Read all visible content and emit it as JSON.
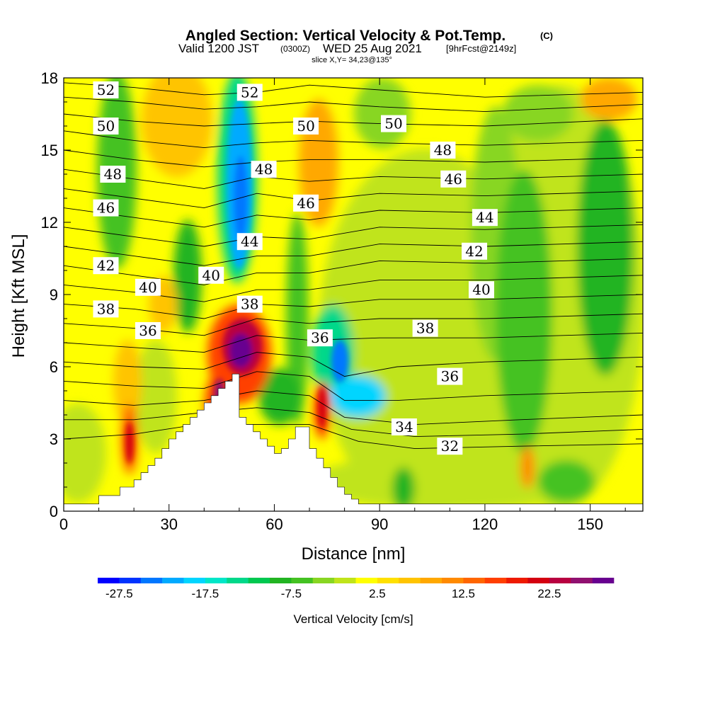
{
  "chart_data": {
    "type": "heatmap",
    "title": "Angled Section: Vertical Velocity & Pot.Temp.",
    "title_unit": "(C)",
    "subtitle_valid": "Valid 1200 JST",
    "subtitle_z": "(0300Z)",
    "subtitle_date": "WED 25 Aug 2021",
    "subtitle_fcst": "[9hrFcst@2149z]",
    "subtitle_slice": "slice X,Y= 34,23@135°",
    "xlabel": "Distance [nm]",
    "ylabel": "Height [Kft MSL]",
    "xlim": [
      0,
      165
    ],
    "ylim": [
      0,
      18
    ],
    "x_ticks": [
      "0",
      "30",
      "60",
      "90",
      "120",
      "150"
    ],
    "y_ticks": [
      "0",
      "3",
      "6",
      "9",
      "12",
      "15",
      "18"
    ],
    "colorbar": {
      "label": "Vertical Velocity [cm/s]",
      "tick_labels": [
        "-27.5",
        "-17.5",
        "-7.5",
        "2.5",
        "12.5",
        "22.5"
      ],
      "tick_values": [
        -27.5,
        -17.5,
        -7.5,
        2.5,
        12.5,
        22.5
      ],
      "min": -30,
      "max": 30,
      "step": 2.5,
      "colors": [
        "#0000ff",
        "#0033ff",
        "#0077ff",
        "#00aaff",
        "#00d5ff",
        "#00e6c8",
        "#00d88a",
        "#00c850",
        "#22b422",
        "#44c222",
        "#88d622",
        "#c0e41a",
        "#ffff00",
        "#ffe000",
        "#ffc400",
        "#ffa800",
        "#ff8a00",
        "#ff6600",
        "#ff3f00",
        "#ee1a00",
        "#d40010",
        "#b80040",
        "#901070",
        "#680090"
      ]
    },
    "terrain": [
      [
        0,
        0.3
      ],
      [
        10,
        0.3
      ],
      [
        10,
        0.65
      ],
      [
        16,
        0.65
      ],
      [
        16,
        1.0
      ],
      [
        18,
        1.0
      ],
      [
        18,
        1.0
      ],
      [
        20,
        1.0
      ],
      [
        20,
        1.3
      ],
      [
        22,
        1.3
      ],
      [
        22,
        1.6
      ],
      [
        24,
        1.6
      ],
      [
        24,
        1.9
      ],
      [
        26,
        1.9
      ],
      [
        26,
        2.2
      ],
      [
        28,
        2.2
      ],
      [
        28,
        2.6
      ],
      [
        30,
        2.6
      ],
      [
        30,
        3.0
      ],
      [
        32,
        3.0
      ],
      [
        32,
        3.3
      ],
      [
        34,
        3.3
      ],
      [
        34,
        3.6
      ],
      [
        36,
        3.6
      ],
      [
        36,
        3.9
      ],
      [
        38,
        3.9
      ],
      [
        38,
        4.2
      ],
      [
        40,
        4.2
      ],
      [
        40,
        4.5
      ],
      [
        42,
        4.5
      ],
      [
        42,
        4.8
      ],
      [
        44,
        4.8
      ],
      [
        44,
        5.1
      ],
      [
        46,
        5.1
      ],
      [
        46,
        5.4
      ],
      [
        48,
        5.4
      ],
      [
        48,
        5.7
      ],
      [
        50,
        5.7
      ],
      [
        50,
        3.9
      ],
      [
        52,
        3.9
      ],
      [
        52,
        3.6
      ],
      [
        54,
        3.6
      ],
      [
        54,
        3.3
      ],
      [
        56,
        3.3
      ],
      [
        56,
        3.0
      ],
      [
        58,
        3.0
      ],
      [
        58,
        2.7
      ],
      [
        60,
        2.7
      ],
      [
        60,
        2.4
      ],
      [
        62,
        2.4
      ],
      [
        62,
        2.6
      ],
      [
        64,
        2.6
      ],
      [
        64,
        3.0
      ],
      [
        66,
        3.0
      ],
      [
        66,
        3.5
      ],
      [
        68,
        3.5
      ],
      [
        68,
        3.5
      ],
      [
        70,
        3.5
      ],
      [
        70,
        2.6
      ],
      [
        72,
        2.6
      ],
      [
        72,
        2.2
      ],
      [
        74,
        2.2
      ],
      [
        74,
        1.8
      ],
      [
        76,
        1.8
      ],
      [
        76,
        1.4
      ],
      [
        78,
        1.4
      ],
      [
        78,
        1.0
      ],
      [
        80,
        1.0
      ],
      [
        80,
        0.7
      ],
      [
        82,
        0.7
      ],
      [
        82,
        0.5
      ],
      [
        84,
        0.5
      ],
      [
        84,
        0.3
      ],
      [
        165,
        0.3
      ]
    ],
    "theta_levels": [
      {
        "value": "52",
        "label_x": 12,
        "label_y": 17.5
      },
      {
        "value": "50",
        "label_x": 12,
        "label_y": 16.0
      },
      {
        "value": "48",
        "label_x": 14,
        "label_y": 14.0
      },
      {
        "value": "46",
        "label_x": 12,
        "label_y": 12.6
      },
      {
        "value": "42",
        "label_x": 12,
        "label_y": 10.2
      },
      {
        "value": "40",
        "label_x": 24,
        "label_y": 9.3
      },
      {
        "value": "38",
        "label_x": 12,
        "label_y": 8.4
      },
      {
        "value": "36",
        "label_x": 24,
        "label_y": 7.5
      },
      {
        "value": "52",
        "label_x": 53,
        "label_y": 17.4
      },
      {
        "value": "48",
        "label_x": 57,
        "label_y": 14.2
      },
      {
        "value": "44",
        "label_x": 53,
        "label_y": 11.2
      },
      {
        "value": "40",
        "label_x": 42,
        "label_y": 9.8
      },
      {
        "value": "38",
        "label_x": 53,
        "label_y": 8.6
      },
      {
        "value": "50",
        "label_x": 69,
        "label_y": 16.0
      },
      {
        "value": "46",
        "label_x": 69,
        "label_y": 12.8
      },
      {
        "value": "36",
        "label_x": 73,
        "label_y": 7.2
      },
      {
        "value": "50",
        "label_x": 94,
        "label_y": 16.1
      },
      {
        "value": "48",
        "label_x": 108,
        "label_y": 15.0
      },
      {
        "value": "46",
        "label_x": 111,
        "label_y": 13.8
      },
      {
        "value": "44",
        "label_x": 120,
        "label_y": 12.2
      },
      {
        "value": "42",
        "label_x": 117,
        "label_y": 10.8
      },
      {
        "value": "40",
        "label_x": 119,
        "label_y": 9.2
      },
      {
        "value": "38",
        "label_x": 103,
        "label_y": 7.6
      },
      {
        "value": "36",
        "label_x": 110,
        "label_y": 5.6
      },
      {
        "value": "34",
        "label_x": 97,
        "label_y": 3.5
      },
      {
        "value": "32",
        "label_x": 110,
        "label_y": 2.7
      }
    ],
    "theta_lines": [
      [
        [
          0,
          17.8
        ],
        [
          20,
          17.6
        ],
        [
          40,
          17.3
        ],
        [
          55,
          17.4
        ],
        [
          70,
          17.7
        ],
        [
          90,
          17.5
        ],
        [
          120,
          17.2
        ],
        [
          165,
          17.4
        ]
      ],
      [
        [
          0,
          17.2
        ],
        [
          20,
          17.0
        ],
        [
          40,
          16.7
        ],
        [
          55,
          16.8
        ],
        [
          70,
          17.0
        ],
        [
          90,
          16.8
        ],
        [
          120,
          16.6
        ],
        [
          165,
          16.9
        ]
      ],
      [
        [
          0,
          16.5
        ],
        [
          20,
          16.2
        ],
        [
          40,
          16.0
        ],
        [
          55,
          16.1
        ],
        [
          70,
          16.2
        ],
        [
          90,
          16.1
        ],
        [
          120,
          16.0
        ],
        [
          165,
          16.3
        ]
      ],
      [
        [
          0,
          15.8
        ],
        [
          20,
          15.4
        ],
        [
          40,
          15.1
        ],
        [
          55,
          15.3
        ],
        [
          70,
          15.4
        ],
        [
          90,
          15.3
        ],
        [
          120,
          15.2
        ],
        [
          165,
          15.4
        ]
      ],
      [
        [
          0,
          15.0
        ],
        [
          20,
          14.6
        ],
        [
          40,
          14.3
        ],
        [
          55,
          14.5
        ],
        [
          70,
          14.6
        ],
        [
          90,
          14.6
        ],
        [
          120,
          14.5
        ],
        [
          165,
          14.7
        ]
      ],
      [
        [
          0,
          14.2
        ],
        [
          20,
          13.8
        ],
        [
          40,
          13.4
        ],
        [
          55,
          13.9
        ],
        [
          70,
          13.7
        ],
        [
          90,
          13.9
        ],
        [
          120,
          13.8
        ],
        [
          165,
          14.0
        ]
      ],
      [
        [
          0,
          13.4
        ],
        [
          20,
          13.0
        ],
        [
          40,
          12.6
        ],
        [
          55,
          13.2
        ],
        [
          70,
          12.9
        ],
        [
          90,
          13.2
        ],
        [
          120,
          13.1
        ],
        [
          165,
          13.3
        ]
      ],
      [
        [
          0,
          12.6
        ],
        [
          20,
          12.2
        ],
        [
          40,
          11.8
        ],
        [
          55,
          12.3
        ],
        [
          70,
          12.1
        ],
        [
          90,
          12.5
        ],
        [
          120,
          12.4
        ],
        [
          165,
          12.6
        ]
      ],
      [
        [
          0,
          11.8
        ],
        [
          20,
          11.4
        ],
        [
          40,
          11.0
        ],
        [
          55,
          11.4
        ],
        [
          70,
          11.3
        ],
        [
          90,
          11.8
        ],
        [
          120,
          11.7
        ],
        [
          165,
          11.9
        ]
      ],
      [
        [
          0,
          11.0
        ],
        [
          20,
          10.6
        ],
        [
          40,
          10.2
        ],
        [
          55,
          10.6
        ],
        [
          70,
          10.6
        ],
        [
          90,
          11.1
        ],
        [
          120,
          11.0
        ],
        [
          165,
          11.2
        ]
      ],
      [
        [
          0,
          10.2
        ],
        [
          20,
          9.8
        ],
        [
          40,
          9.4
        ],
        [
          55,
          9.9
        ],
        [
          70,
          9.9
        ],
        [
          90,
          10.4
        ],
        [
          120,
          10.3
        ],
        [
          165,
          10.5
        ]
      ],
      [
        [
          0,
          9.4
        ],
        [
          20,
          9.1
        ],
        [
          40,
          8.7
        ],
        [
          55,
          9.2
        ],
        [
          70,
          9.2
        ],
        [
          90,
          9.6
        ],
        [
          120,
          9.6
        ],
        [
          165,
          9.8
        ]
      ],
      [
        [
          0,
          8.6
        ],
        [
          20,
          8.4
        ],
        [
          40,
          8.0
        ],
        [
          55,
          8.6
        ],
        [
          70,
          8.5
        ],
        [
          90,
          8.8
        ],
        [
          120,
          8.8
        ],
        [
          165,
          9.0
        ]
      ],
      [
        [
          0,
          7.8
        ],
        [
          20,
          7.6
        ],
        [
          40,
          7.3
        ],
        [
          55,
          8.0
        ],
        [
          70,
          7.8
        ],
        [
          90,
          8.0
        ],
        [
          120,
          8.0
        ],
        [
          165,
          8.2
        ]
      ],
      [
        [
          0,
          7.0
        ],
        [
          20,
          6.8
        ],
        [
          40,
          6.6
        ],
        [
          55,
          7.3
        ],
        [
          70,
          7.1
        ],
        [
          90,
          7.2
        ],
        [
          120,
          7.2
        ],
        [
          165,
          7.4
        ]
      ],
      [
        [
          0,
          6.2
        ],
        [
          20,
          6.0
        ],
        [
          40,
          5.9
        ],
        [
          55,
          6.6
        ],
        [
          70,
          6.4
        ],
        [
          80,
          5.6
        ],
        [
          95,
          6.0
        ],
        [
          120,
          6.2
        ],
        [
          165,
          6.4
        ]
      ],
      [
        [
          0,
          5.4
        ],
        [
          20,
          5.2
        ],
        [
          40,
          5.1
        ],
        [
          55,
          5.8
        ],
        [
          70,
          5.6
        ],
        [
          80,
          4.6
        ],
        [
          95,
          4.6
        ],
        [
          120,
          4.8
        ],
        [
          165,
          5.0
        ]
      ],
      [
        [
          0,
          4.6
        ],
        [
          20,
          4.4
        ],
        [
          40,
          4.6
        ],
        [
          55,
          5.0
        ],
        [
          70,
          4.8
        ],
        [
          80,
          3.9
        ],
        [
          100,
          3.6
        ],
        [
          130,
          3.8
        ],
        [
          165,
          4.0
        ]
      ],
      [
        [
          0,
          3.8
        ],
        [
          20,
          3.8
        ],
        [
          40,
          4.1
        ],
        [
          55,
          4.3
        ],
        [
          70,
          4.1
        ],
        [
          82,
          3.4
        ],
        [
          100,
          3.1
        ],
        [
          130,
          3.2
        ],
        [
          165,
          3.4
        ]
      ],
      [
        [
          0,
          3.0
        ],
        [
          20,
          3.2
        ],
        [
          38,
          3.6
        ],
        [
          70,
          3.6
        ],
        [
          84,
          2.9
        ],
        [
          100,
          2.6
        ],
        [
          130,
          2.7
        ],
        [
          165,
          2.8
        ]
      ]
    ]
  }
}
